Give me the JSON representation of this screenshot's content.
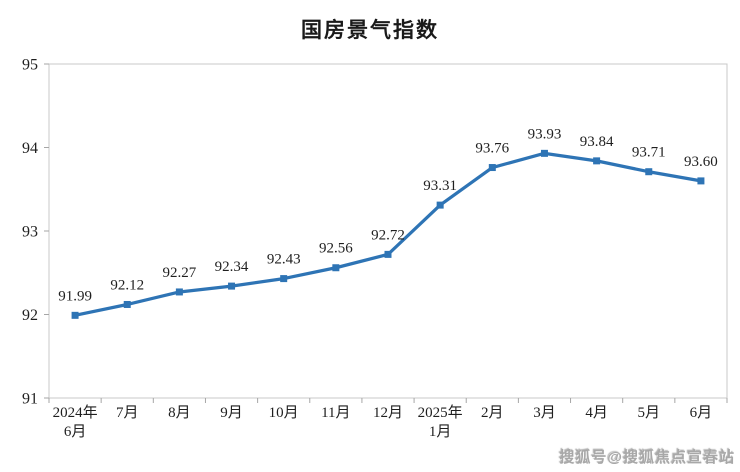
{
  "title": "国房景气指数",
  "watermark": "搜狐号@搜狐焦点宣春站",
  "chart_data": {
    "type": "line",
    "title": "国房景气指数",
    "categories": [
      "2024年\n6月",
      "7月",
      "8月",
      "9月",
      "10月",
      "11月",
      "12月",
      "2025年\n1月",
      "2月",
      "3月",
      "4月",
      "5月",
      "6月"
    ],
    "series": [
      {
        "name": "国房景气指数",
        "values": [
          91.99,
          92.12,
          92.27,
          92.34,
          92.43,
          92.56,
          92.72,
          93.31,
          93.76,
          93.93,
          93.84,
          93.71,
          93.6
        ]
      }
    ],
    "data_labels": [
      "91.99",
      "92.12",
      "92.27",
      "92.34",
      "92.43",
      "92.56",
      "92.72",
      "93.31",
      "93.76",
      "93.93",
      "93.84",
      "93.71",
      "93.60"
    ],
    "xlabel": "",
    "ylabel": "",
    "ylim": [
      91,
      95
    ],
    "yticks": [
      91,
      92,
      93,
      94,
      95
    ],
    "grid": false,
    "legend_position": "none",
    "colors": {
      "line": "#2E74B5",
      "marker": "#2E74B5",
      "axis_border": "#c8c8c8",
      "tick": "#a6a6a6",
      "text": "#1f1f1f"
    }
  }
}
